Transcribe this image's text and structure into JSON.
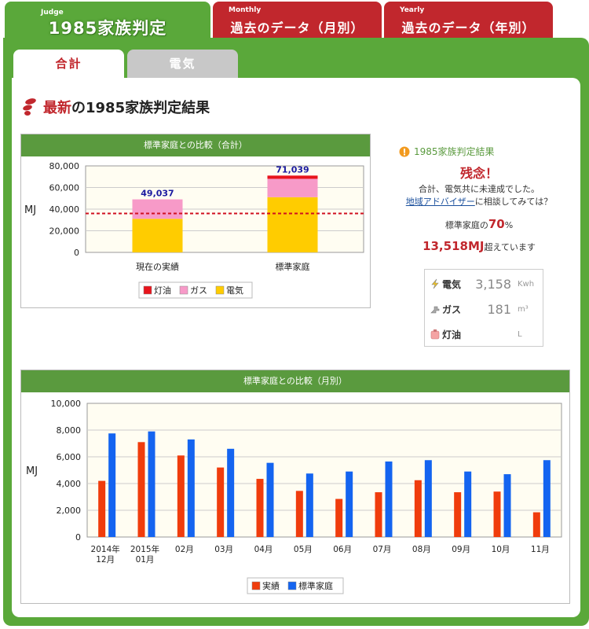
{
  "top_tabs": {
    "judge": {
      "small": "Judge",
      "big": "1985家族判定"
    },
    "monthly": {
      "small": "Monthly",
      "big": "過去のデータ（月別）"
    },
    "yearly": {
      "small": "Yearly",
      "big": "過去のデータ（年別）"
    }
  },
  "sub_tabs": {
    "total": "合計",
    "electric": "電気"
  },
  "heading": {
    "accent": "最新",
    "rest": "の1985家族判定結果"
  },
  "colors": {
    "green": "#5aa83a",
    "red": "#c1272d",
    "kerosene": "#e8141c",
    "gas": "#f79ac8",
    "electric": "#ffcc00",
    "actual": "#f03c0c",
    "standard": "#1464f0"
  },
  "result": {
    "title": "1985家族判定結果",
    "main": "残念！",
    "line1": "合計、電気共に未達成でした。",
    "link": "地域アドバイザー",
    "line2_rest": "に相談してみては？",
    "pct_prefix": "標準家庭の",
    "pct_value": "70",
    "pct_suffix": "%",
    "mj_value": "13,518MJ",
    "mj_suffix": "超えています"
  },
  "usage": [
    {
      "label": "電気",
      "value": "3,158",
      "unit": "Kwh",
      "icon": "lightning-icon"
    },
    {
      "label": "ガス",
      "value": "181",
      "unit": "m³",
      "icon": "gas-icon"
    },
    {
      "label": "灯油",
      "value": "",
      "unit": "L",
      "icon": "kerosene-icon"
    }
  ],
  "chart_data": [
    {
      "type": "bar",
      "stacked": true,
      "title": "標準家庭との比較（合計）",
      "ylabel": "MJ",
      "ylim": [
        0,
        80000
      ],
      "yticks": [
        "0",
        "20,000",
        "40,000",
        "60,000",
        "80,000"
      ],
      "categories": [
        "現在の実績",
        "標準家庭"
      ],
      "totals": [
        "49,037",
        "71,039"
      ],
      "total_values": [
        49037,
        71039
      ],
      "reference_line": 36000,
      "series": [
        {
          "name": "灯油",
          "color": "#e8141c",
          "values": [
            0,
            3000
          ]
        },
        {
          "name": "ガス",
          "color": "#f79ac8",
          "values": [
            18000,
            17000
          ]
        },
        {
          "name": "電気",
          "color": "#ffcc00",
          "values": [
            31037,
            51039
          ]
        }
      ],
      "legend": [
        "灯油",
        "ガス",
        "電気"
      ],
      "legend_position": "bottom"
    },
    {
      "type": "bar",
      "title": "標準家庭との比較（月別）",
      "ylabel": "MJ",
      "ylim": [
        0,
        10000
      ],
      "yticks": [
        "0",
        "2,000",
        "4,000",
        "6,000",
        "8,000",
        "10,000"
      ],
      "categories": [
        [
          "2014年",
          "12月"
        ],
        [
          "2015年",
          "01月"
        ],
        [
          "02月"
        ],
        [
          "03月"
        ],
        [
          "04月"
        ],
        [
          "05月"
        ],
        [
          "06月"
        ],
        [
          "07月"
        ],
        [
          "08月"
        ],
        [
          "09月"
        ],
        [
          "10月"
        ],
        [
          "11月"
        ]
      ],
      "series": [
        {
          "name": "実績",
          "color": "#f03c0c",
          "values": [
            4200,
            7100,
            6100,
            5200,
            4350,
            3450,
            2850,
            3350,
            4250,
            3350,
            3400,
            1850
          ]
        },
        {
          "name": "標準家庭",
          "color": "#1464f0",
          "values": [
            7750,
            7900,
            7300,
            6600,
            5550,
            4750,
            4900,
            5650,
            5750,
            4900,
            4700,
            5750
          ]
        }
      ],
      "legend": [
        "実績",
        "標準家庭"
      ],
      "legend_position": "bottom"
    }
  ]
}
